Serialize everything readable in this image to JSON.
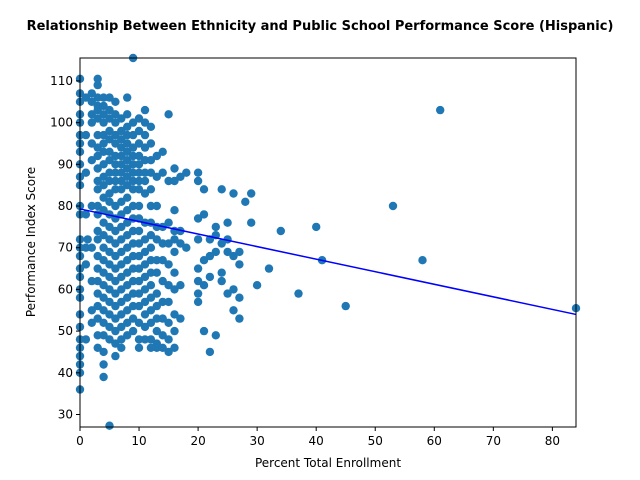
{
  "chart_data": {
    "type": "scatter",
    "title": "Relationship Between Ethnicity and Public School Performance Score (Hispanic)",
    "xlabel": "Percent Total Enrollment",
    "ylabel": "Performance Index Score",
    "xlim": [
      0,
      84
    ],
    "ylim": [
      27,
      115.5
    ],
    "xticks": [
      0,
      10,
      20,
      30,
      40,
      50,
      60,
      70,
      80
    ],
    "yticks": [
      30,
      40,
      50,
      60,
      70,
      80,
      90,
      100,
      110
    ],
    "grid": false,
    "legend": "none",
    "colors": {
      "points": "#1f77b4",
      "regression": "#0000ff"
    },
    "regression_line": {
      "x": [
        0,
        84
      ],
      "y": [
        79.3,
        54.0
      ]
    },
    "points": [
      [
        0,
        110.5
      ],
      [
        0,
        107
      ],
      [
        0,
        105
      ],
      [
        0,
        102
      ],
      [
        0,
        100
      ],
      [
        0,
        97
      ],
      [
        0,
        95
      ],
      [
        0,
        93
      ],
      [
        0,
        90
      ],
      [
        0,
        87
      ],
      [
        0,
        85
      ],
      [
        0,
        80
      ],
      [
        0,
        78
      ],
      [
        0,
        72
      ],
      [
        0,
        70
      ],
      [
        0,
        68
      ],
      [
        0,
        65
      ],
      [
        0,
        63
      ],
      [
        0,
        60
      ],
      [
        0,
        58
      ],
      [
        0,
        54
      ],
      [
        0,
        51
      ],
      [
        0,
        48
      ],
      [
        0,
        46
      ],
      [
        0,
        44
      ],
      [
        0,
        42
      ],
      [
        0,
        40
      ],
      [
        0,
        36
      ],
      [
        1,
        106
      ],
      [
        1,
        97
      ],
      [
        1,
        88
      ],
      [
        1,
        78
      ],
      [
        1,
        70
      ],
      [
        1,
        66
      ],
      [
        1,
        48
      ],
      [
        1.3,
        72
      ],
      [
        2,
        107
      ],
      [
        2,
        105
      ],
      [
        2,
        102
      ],
      [
        2,
        100
      ],
      [
        2,
        95
      ],
      [
        2,
        91
      ],
      [
        2,
        80
      ],
      [
        2,
        70
      ],
      [
        2,
        62
      ],
      [
        2,
        55
      ],
      [
        2,
        52
      ],
      [
        3,
        110.5
      ],
      [
        3,
        109
      ],
      [
        3,
        106
      ],
      [
        3,
        104
      ],
      [
        3,
        103
      ],
      [
        3,
        101
      ],
      [
        3,
        97
      ],
      [
        3,
        94
      ],
      [
        3,
        92
      ],
      [
        3,
        89
      ],
      [
        3,
        86
      ],
      [
        3,
        84
      ],
      [
        3,
        80
      ],
      [
        3,
        78
      ],
      [
        3,
        74
      ],
      [
        3,
        72
      ],
      [
        3,
        68
      ],
      [
        3,
        65
      ],
      [
        3,
        62
      ],
      [
        3,
        59
      ],
      [
        3,
        56
      ],
      [
        3,
        53
      ],
      [
        3,
        49
      ],
      [
        3,
        46
      ],
      [
        4,
        106
      ],
      [
        4,
        104
      ],
      [
        4,
        102
      ],
      [
        4,
        100
      ],
      [
        4,
        97
      ],
      [
        4,
        95
      ],
      [
        4,
        93
      ],
      [
        4,
        90
      ],
      [
        4,
        87
      ],
      [
        4,
        85
      ],
      [
        4,
        82
      ],
      [
        4,
        79
      ],
      [
        4,
        76
      ],
      [
        4,
        73
      ],
      [
        4,
        70
      ],
      [
        4,
        67
      ],
      [
        4,
        64
      ],
      [
        4,
        61
      ],
      [
        4,
        58
      ],
      [
        4,
        55
      ],
      [
        4,
        52
      ],
      [
        4,
        49
      ],
      [
        4,
        45
      ],
      [
        4,
        42
      ],
      [
        4,
        39
      ],
      [
        5,
        106
      ],
      [
        5,
        103
      ],
      [
        5,
        101
      ],
      [
        5,
        98
      ],
      [
        5,
        96
      ],
      [
        5,
        93
      ],
      [
        5,
        91
      ],
      [
        5,
        88
      ],
      [
        5,
        86
      ],
      [
        5,
        83
      ],
      [
        5,
        81
      ],
      [
        5,
        78
      ],
      [
        5,
        75
      ],
      [
        5,
        72
      ],
      [
        5,
        69
      ],
      [
        5,
        66
      ],
      [
        5,
        63
      ],
      [
        5,
        60
      ],
      [
        5,
        57
      ],
      [
        5,
        54
      ],
      [
        5,
        51
      ],
      [
        5,
        48
      ],
      [
        5,
        27.3
      ],
      [
        6,
        105
      ],
      [
        6,
        102
      ],
      [
        6,
        100
      ],
      [
        6,
        97
      ],
      [
        6,
        95
      ],
      [
        6,
        92
      ],
      [
        6,
        90
      ],
      [
        6,
        88
      ],
      [
        6,
        86
      ],
      [
        6,
        84
      ],
      [
        6,
        80
      ],
      [
        6,
        77
      ],
      [
        6,
        74
      ],
      [
        6,
        71
      ],
      [
        6,
        68
      ],
      [
        6,
        65
      ],
      [
        6,
        62
      ],
      [
        6,
        59
      ],
      [
        6,
        56
      ],
      [
        6,
        53
      ],
      [
        6,
        50
      ],
      [
        6,
        47
      ],
      [
        6,
        44
      ],
      [
        7,
        101
      ],
      [
        7,
        98
      ],
      [
        7,
        96
      ],
      [
        7,
        94
      ],
      [
        7,
        92
      ],
      [
        7,
        90
      ],
      [
        7,
        88
      ],
      [
        7,
        86
      ],
      [
        7,
        84
      ],
      [
        7,
        81
      ],
      [
        7,
        78
      ],
      [
        7,
        75
      ],
      [
        7,
        72
      ],
      [
        7,
        69
      ],
      [
        7,
        66
      ],
      [
        7,
        63
      ],
      [
        7,
        60
      ],
      [
        7,
        57
      ],
      [
        7,
        54
      ],
      [
        7,
        51
      ],
      [
        7,
        48
      ],
      [
        7,
        46
      ],
      [
        8,
        106
      ],
      [
        8,
        102
      ],
      [
        8,
        99
      ],
      [
        8,
        97
      ],
      [
        8,
        95
      ],
      [
        8,
        93
      ],
      [
        8,
        91
      ],
      [
        8,
        89
      ],
      [
        8,
        87
      ],
      [
        8,
        85
      ],
      [
        8,
        82
      ],
      [
        8,
        79
      ],
      [
        8,
        76
      ],
      [
        8,
        73
      ],
      [
        8,
        70
      ],
      [
        8,
        67
      ],
      [
        8,
        64
      ],
      [
        8,
        61
      ],
      [
        8,
        58
      ],
      [
        8,
        55
      ],
      [
        8,
        52
      ],
      [
        8,
        49
      ],
      [
        9,
        115.5
      ],
      [
        9,
        100
      ],
      [
        9,
        97
      ],
      [
        9,
        94
      ],
      [
        9,
        92
      ],
      [
        9,
        90
      ],
      [
        9,
        88
      ],
      [
        9,
        86
      ],
      [
        9,
        84
      ],
      [
        9,
        80
      ],
      [
        9,
        77
      ],
      [
        9,
        74
      ],
      [
        9,
        71
      ],
      [
        9,
        68
      ],
      [
        9,
        65
      ],
      [
        9,
        62
      ],
      [
        9,
        59
      ],
      [
        9,
        56
      ],
      [
        9,
        53
      ],
      [
        9,
        50
      ],
      [
        10,
        101
      ],
      [
        10,
        98
      ],
      [
        10,
        95
      ],
      [
        10,
        92
      ],
      [
        10,
        90
      ],
      [
        10,
        88
      ],
      [
        10,
        86
      ],
      [
        10,
        84
      ],
      [
        10,
        80
      ],
      [
        10,
        77
      ],
      [
        10,
        74
      ],
      [
        10,
        71
      ],
      [
        10,
        68
      ],
      [
        10,
        65
      ],
      [
        10,
        62
      ],
      [
        10,
        59
      ],
      [
        10,
        56
      ],
      [
        10,
        52
      ],
      [
        10,
        48
      ],
      [
        10,
        46
      ],
      [
        11,
        103
      ],
      [
        11,
        100
      ],
      [
        11,
        97
      ],
      [
        11,
        94
      ],
      [
        11,
        91
      ],
      [
        11,
        88
      ],
      [
        11,
        86
      ],
      [
        11,
        83
      ],
      [
        11,
        76
      ],
      [
        11,
        72
      ],
      [
        11,
        69
      ],
      [
        11,
        66
      ],
      [
        11,
        63
      ],
      [
        11,
        60
      ],
      [
        11,
        57
      ],
      [
        11,
        54
      ],
      [
        11,
        51
      ],
      [
        11,
        48
      ],
      [
        12,
        99
      ],
      [
        12,
        95
      ],
      [
        12,
        91
      ],
      [
        12,
        88
      ],
      [
        12,
        84
      ],
      [
        12,
        80
      ],
      [
        12,
        76
      ],
      [
        12,
        73
      ],
      [
        12,
        70
      ],
      [
        12,
        67
      ],
      [
        12,
        64
      ],
      [
        12,
        61
      ],
      [
        12,
        58
      ],
      [
        12,
        55
      ],
      [
        12,
        52
      ],
      [
        12,
        48
      ],
      [
        12,
        46
      ],
      [
        13,
        92
      ],
      [
        13,
        87
      ],
      [
        13,
        80
      ],
      [
        13,
        75
      ],
      [
        13,
        72
      ],
      [
        13,
        67
      ],
      [
        13,
        64
      ],
      [
        13,
        59
      ],
      [
        13,
        56
      ],
      [
        13,
        53
      ],
      [
        13,
        50
      ],
      [
        13,
        47
      ],
      [
        13,
        46
      ],
      [
        14,
        93
      ],
      [
        14,
        88
      ],
      [
        14,
        75
      ],
      [
        14,
        71
      ],
      [
        14,
        67
      ],
      [
        14,
        62
      ],
      [
        14,
        57
      ],
      [
        14,
        53
      ],
      [
        14,
        49
      ],
      [
        14,
        46
      ],
      [
        15,
        102
      ],
      [
        15,
        86
      ],
      [
        15,
        76
      ],
      [
        15,
        71
      ],
      [
        15,
        66
      ],
      [
        15,
        61
      ],
      [
        15,
        57
      ],
      [
        15,
        52
      ],
      [
        15,
        48
      ],
      [
        15,
        45
      ],
      [
        16,
        89
      ],
      [
        16,
        86
      ],
      [
        16,
        79
      ],
      [
        16,
        74
      ],
      [
        16,
        72
      ],
      [
        16,
        69
      ],
      [
        16,
        64
      ],
      [
        16,
        60
      ],
      [
        16,
        54
      ],
      [
        16,
        50
      ],
      [
        16,
        46
      ],
      [
        17,
        87
      ],
      [
        17,
        74
      ],
      [
        17,
        71
      ],
      [
        17,
        61
      ],
      [
        17,
        53
      ],
      [
        18,
        88
      ],
      [
        18,
        70
      ],
      [
        20,
        88
      ],
      [
        20,
        86
      ],
      [
        20,
        77
      ],
      [
        20,
        72
      ],
      [
        20,
        65
      ],
      [
        20,
        62
      ],
      [
        20,
        59
      ],
      [
        20,
        57
      ],
      [
        21,
        84
      ],
      [
        21,
        78
      ],
      [
        21,
        67
      ],
      [
        21,
        61
      ],
      [
        21,
        50
      ],
      [
        22,
        72
      ],
      [
        22,
        68
      ],
      [
        22,
        63
      ],
      [
        22,
        45
      ],
      [
        23,
        75
      ],
      [
        23,
        73
      ],
      [
        23,
        69
      ],
      [
        23,
        49
      ],
      [
        24,
        84
      ],
      [
        24,
        71
      ],
      [
        24,
        64
      ],
      [
        24,
        62
      ],
      [
        25,
        76
      ],
      [
        25,
        72
      ],
      [
        25,
        69
      ],
      [
        25,
        59
      ],
      [
        26,
        83
      ],
      [
        26,
        68
      ],
      [
        26,
        60
      ],
      [
        26,
        55
      ],
      [
        27,
        69
      ],
      [
        27,
        66
      ],
      [
        27,
        58
      ],
      [
        27,
        53
      ],
      [
        28,
        81
      ],
      [
        29,
        83
      ],
      [
        29,
        76
      ],
      [
        30,
        61
      ],
      [
        32,
        65
      ],
      [
        34,
        74
      ],
      [
        37,
        59
      ],
      [
        40,
        75
      ],
      [
        41,
        67
      ],
      [
        45,
        56
      ],
      [
        53,
        80
      ],
      [
        58,
        67
      ],
      [
        61,
        103
      ],
      [
        84,
        55.5
      ]
    ]
  }
}
